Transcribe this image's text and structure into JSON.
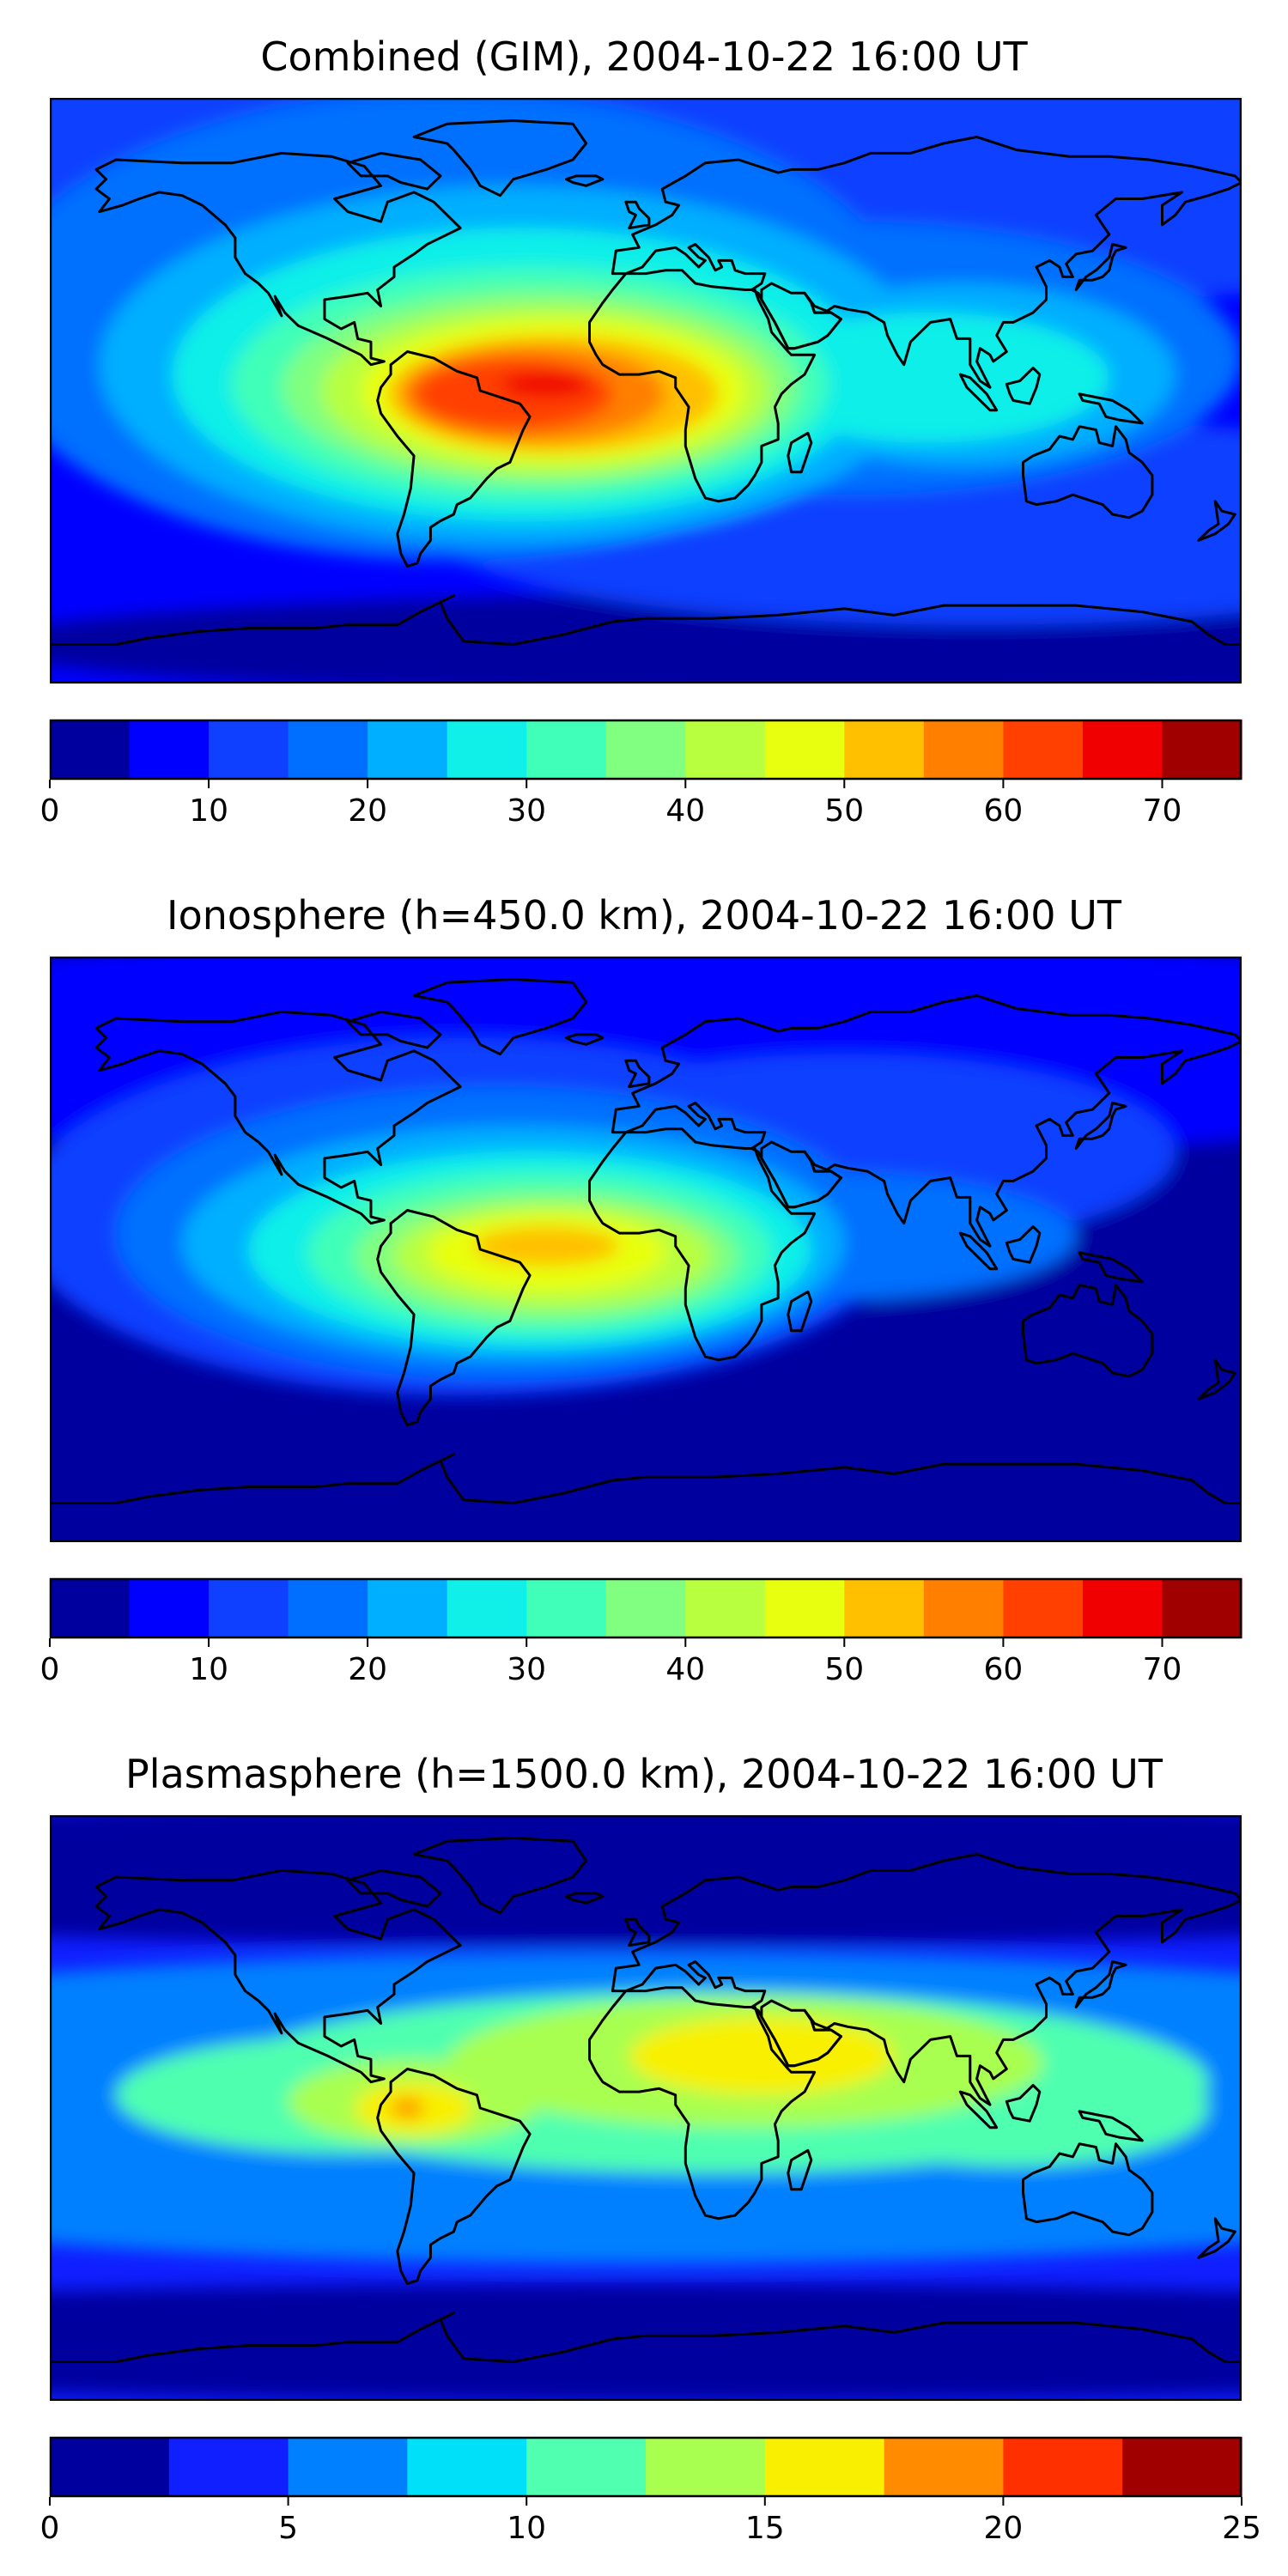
{
  "figure": {
    "date": "2004-10-22",
    "time": "16:00 UT"
  },
  "chart_data": [
    {
      "type": "heatmap",
      "title": "Combined (GIM), 2004-10-22 16:00 UT",
      "colorbar": {
        "vmin": 0,
        "vmax": 75,
        "step": 5,
        "ticks": [
          0,
          10,
          20,
          30,
          40,
          50,
          60,
          70
        ],
        "tick_labels": [
          "0",
          "10",
          "20",
          "30",
          "40",
          "50",
          "60",
          "70"
        ],
        "colors": [
          "#00009f",
          "#0000ff",
          "#0f3fff",
          "#006fff",
          "#00afff",
          "#10efe8",
          "#40ffb8",
          "#80ff80",
          "#b8ff40",
          "#e8ff10",
          "#ffc000",
          "#ff8000",
          "#ff4000",
          "#f00000",
          "#a00000"
        ]
      },
      "field_peak_value": 68,
      "field_peak_location": "South America / equatorial Atlantic",
      "field_min_value": 5,
      "coastlines": true
    },
    {
      "type": "heatmap",
      "title": "Ionosphere  (h=450.0 km), 2004-10-22 16:00 UT",
      "colorbar": {
        "vmin": 0,
        "vmax": 75,
        "step": 5,
        "ticks": [
          0,
          10,
          20,
          30,
          40,
          50,
          60,
          70
        ],
        "tick_labels": [
          "0",
          "10",
          "20",
          "30",
          "40",
          "50",
          "60",
          "70"
        ],
        "colors": [
          "#00009f",
          "#0000ff",
          "#0f3fff",
          "#006fff",
          "#00afff",
          "#10efe8",
          "#40ffb8",
          "#80ff80",
          "#b8ff40",
          "#e8ff10",
          "#ffc000",
          "#ff8000",
          "#ff4000",
          "#f00000",
          "#a00000"
        ]
      },
      "field_peak_value": 52,
      "field_peak_location": "South America / equatorial Atlantic",
      "field_min_value": 2,
      "coastlines": true
    },
    {
      "type": "heatmap",
      "title": "Plasmasphere (h=1500.0 km), 2004-10-22 16:00 UT",
      "colorbar": {
        "vmin": 0,
        "vmax": 25,
        "step": 2.5,
        "ticks": [
          0,
          5,
          10,
          15,
          20,
          25
        ],
        "tick_labels": [
          "0",
          "5",
          "10",
          "15",
          "20",
          "25"
        ],
        "colors": [
          "#00009f",
          "#0f1fff",
          "#0080ff",
          "#00e0f8",
          "#50ffb0",
          "#a8ff50",
          "#f8f000",
          "#ff8c00",
          "#ff3000",
          "#a00000"
        ]
      },
      "field_peak_value": 18,
      "field_peak_location": "Bolivia / Arabian Peninsula",
      "field_min_value": 1,
      "coastlines": true
    }
  ]
}
